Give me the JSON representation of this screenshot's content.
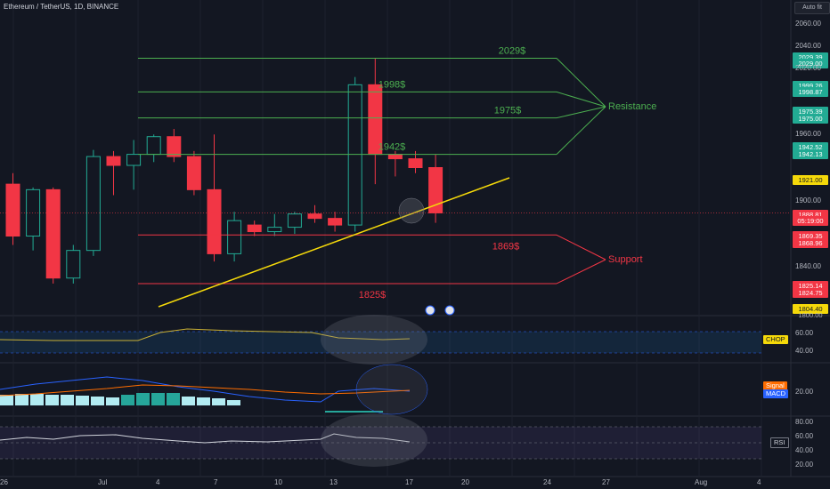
{
  "header": {
    "symbol_title": "Ethereum / TetherUS, 1D, BINANCE",
    "toggle_label": "Auto fit"
  },
  "price_axis": {
    "ticks": [
      "2060.00",
      "2040.00",
      "2020.00",
      "1960.00",
      "1900.00",
      "1840.00"
    ],
    "tags": [
      {
        "text": "2029.39",
        "bg": "#22ab94",
        "fg": "#ffffff"
      },
      {
        "text": "2029.00",
        "bg": "#22ab94",
        "fg": "#ffffff"
      },
      {
        "text": "1999.26",
        "bg": "#22ab94",
        "fg": "#ffffff"
      },
      {
        "text": "1998.87",
        "bg": "#22ab94",
        "fg": "#ffffff"
      },
      {
        "text": "1975.39",
        "bg": "#22ab94",
        "fg": "#ffffff"
      },
      {
        "text": "1975.00",
        "bg": "#22ab94",
        "fg": "#ffffff"
      },
      {
        "text": "1942.52",
        "bg": "#22ab94",
        "fg": "#ffffff"
      },
      {
        "text": "1942.13",
        "bg": "#22ab94",
        "fg": "#ffffff"
      },
      {
        "text": "1921.00",
        "bg": "#f5d90a",
        "fg": "#131722"
      },
      {
        "text": "1888.81",
        "bg": "#f23645",
        "fg": "#ffffff"
      },
      {
        "text": "05:19:00",
        "bg": "#f23645",
        "fg": "#ffffff"
      },
      {
        "text": "1869.35",
        "bg": "#f23645",
        "fg": "#ffffff"
      },
      {
        "text": "1868.96",
        "bg": "#f23645",
        "fg": "#ffffff"
      },
      {
        "text": "1825.14",
        "bg": "#f23645",
        "fg": "#ffffff"
      },
      {
        "text": "1824.75",
        "bg": "#f23645",
        "fg": "#ffffff"
      },
      {
        "text": "1804.40",
        "bg": "#f5d90a",
        "fg": "#131722"
      },
      {
        "text": "1800.00",
        "bg": "",
        "fg": "#b2b5be"
      }
    ]
  },
  "date_axis": {
    "labels": [
      "26",
      "Jul",
      "4",
      "7",
      "10",
      "13",
      "17",
      "20",
      "24",
      "27",
      "Aug",
      "4"
    ]
  },
  "drawings": {
    "resistance_levels": [
      "2029$",
      "1998$",
      "1975$",
      "1942$"
    ],
    "resistance_label": "Resistance",
    "support_levels": [
      "1869$",
      "1825$"
    ],
    "support_label": "Support",
    "colors": {
      "resistance": "#4caf50",
      "support": "#f23645",
      "trendline": "#f5d90a"
    }
  },
  "candles": [
    {
      "o": 1915,
      "h": 1925,
      "l": 1860,
      "c": 1868
    },
    {
      "o": 1868,
      "h": 1912,
      "l": 1855,
      "c": 1910
    },
    {
      "o": 1910,
      "h": 1912,
      "l": 1825,
      "c": 1830
    },
    {
      "o": 1830,
      "h": 1860,
      "l": 1825,
      "c": 1855
    },
    {
      "o": 1855,
      "h": 1946,
      "l": 1850,
      "c": 1940
    },
    {
      "o": 1940,
      "h": 1945,
      "l": 1905,
      "c": 1932
    },
    {
      "o": 1932,
      "h": 1955,
      "l": 1910,
      "c": 1942
    },
    {
      "o": 1942,
      "h": 1960,
      "l": 1935,
      "c": 1958
    },
    {
      "o": 1958,
      "h": 1965,
      "l": 1935,
      "c": 1940
    },
    {
      "o": 1940,
      "h": 1945,
      "l": 1905,
      "c": 1910
    },
    {
      "o": 1910,
      "h": 1960,
      "l": 1845,
      "c": 1852
    },
    {
      "o": 1852,
      "h": 1890,
      "l": 1845,
      "c": 1882
    },
    {
      "o": 1878,
      "h": 1882,
      "l": 1868,
      "c": 1872
    },
    {
      "o": 1872,
      "h": 1888,
      "l": 1868,
      "c": 1876
    },
    {
      "o": 1876,
      "h": 1890,
      "l": 1870,
      "c": 1888
    },
    {
      "o": 1888,
      "h": 1896,
      "l": 1880,
      "c": 1884
    },
    {
      "o": 1884,
      "h": 1890,
      "l": 1872,
      "c": 1878
    },
    {
      "o": 1878,
      "h": 2012,
      "l": 1872,
      "c": 2005
    },
    {
      "o": 2005,
      "h": 2029,
      "l": 1915,
      "c": 1942
    },
    {
      "o": 1942,
      "h": 1945,
      "l": 1922,
      "c": 1938
    },
    {
      "o": 1938,
      "h": 1945,
      "l": 1925,
      "c": 1930
    },
    {
      "o": 1930,
      "h": 1942,
      "l": 1880,
      "c": 1889
    }
  ],
  "indicators": {
    "chop": {
      "label": "CHOP",
      "ticks": [
        "60.00",
        "40.00"
      ],
      "tag_bg": "#f5d90a"
    },
    "macd": {
      "signal_label": "Signal",
      "macd_label": "MACD",
      "ticks": [
        "20.00"
      ],
      "histogram": [
        8,
        9,
        9,
        8,
        8,
        7,
        6,
        5,
        8,
        10,
        10,
        10,
        10,
        9,
        8,
        6
      ],
      "macd_line": [
        12,
        14,
        16,
        20,
        24,
        26,
        28,
        30,
        28,
        24,
        20,
        17,
        16,
        17,
        18,
        20,
        22,
        21,
        20
      ],
      "signal_line": [
        10,
        11,
        13,
        15,
        18,
        21,
        24,
        26,
        27,
        27,
        26,
        24,
        22,
        21,
        20,
        20,
        21,
        21,
        21
      ]
    },
    "rsi": {
      "label": "RSI",
      "ticks": [
        "80.00",
        "60.00",
        "40.00",
        "20.00"
      ]
    }
  }
}
